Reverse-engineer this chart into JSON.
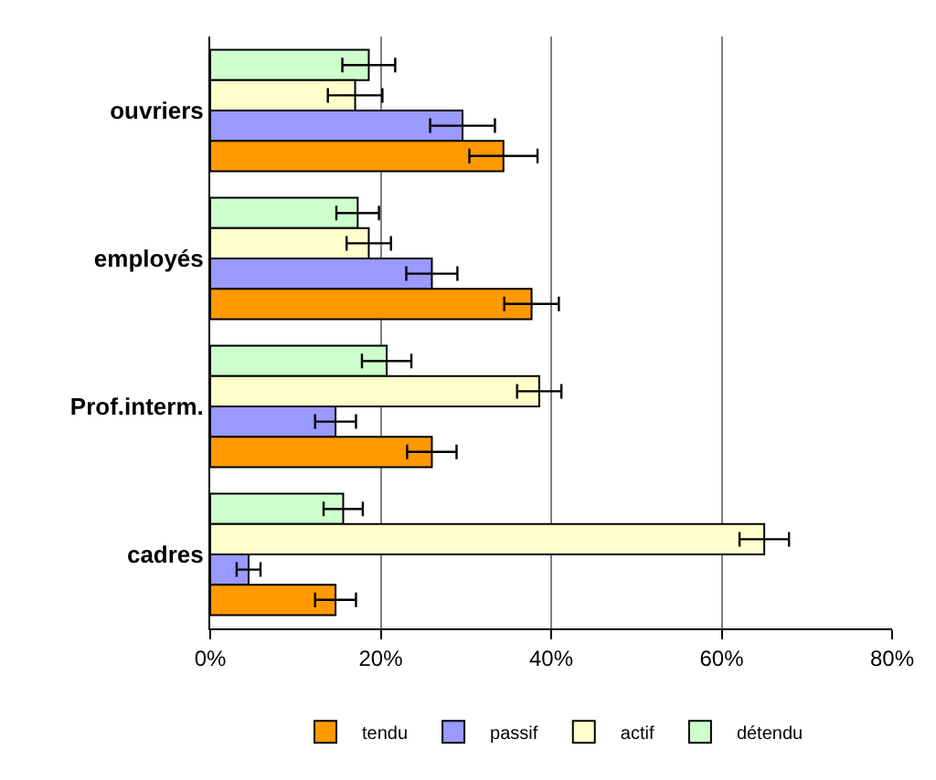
{
  "chart_data": {
    "type": "bar",
    "orientation": "horizontal",
    "categories": [
      "ouvriers",
      "employés",
      "Prof.interm.",
      "cadres"
    ],
    "series": [
      {
        "name": "tendu",
        "color": "#ff9900",
        "values": [
          34.4,
          37.7,
          26.0,
          14.7
        ],
        "errors": [
          4.0,
          3.2,
          2.9,
          2.4
        ]
      },
      {
        "name": "passif",
        "color": "#9999ff",
        "values": [
          29.6,
          26.0,
          14.7,
          4.5
        ],
        "errors": [
          3.8,
          3.0,
          2.4,
          1.4
        ]
      },
      {
        "name": "actif",
        "color": "#ffffcc",
        "values": [
          17.0,
          18.6,
          38.6,
          65.0
        ],
        "errors": [
          3.2,
          2.6,
          2.6,
          2.9
        ]
      },
      {
        "name": "détendu",
        "color": "#ccffcc",
        "values": [
          18.6,
          17.3,
          20.7,
          15.6
        ],
        "errors": [
          3.1,
          2.5,
          2.9,
          2.3
        ]
      }
    ],
    "xlim": [
      0,
      80
    ],
    "xticks": [
      {
        "value": 0,
        "label": "0%"
      },
      {
        "value": 20,
        "label": "20%"
      },
      {
        "value": 40,
        "label": "40%"
      },
      {
        "value": 60,
        "label": "60%"
      },
      {
        "value": 80,
        "label": "80%"
      }
    ],
    "grid": "x",
    "legend": "bottom"
  }
}
